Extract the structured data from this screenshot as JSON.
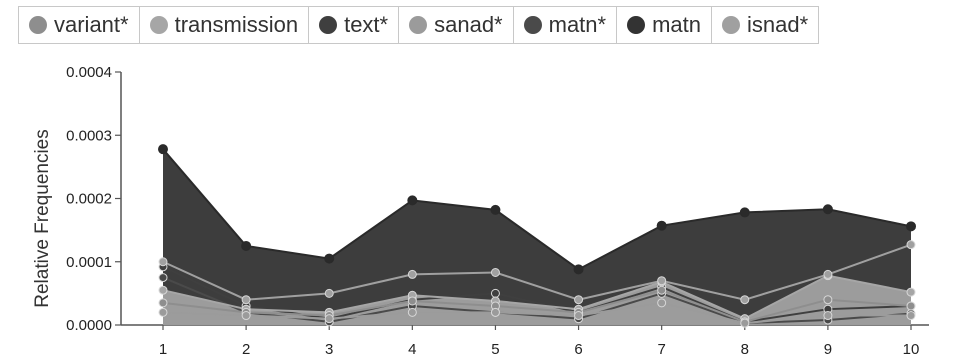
{
  "legend": [
    {
      "label": "variant*",
      "color": "#8e8e8e"
    },
    {
      "label": "transmission",
      "color": "#a6a6a6"
    },
    {
      "label": "text*",
      "color": "#3f3f3f"
    },
    {
      "label": "sanad*",
      "color": "#9b9b9b"
    },
    {
      "label": "matn*",
      "color": "#4a4a4a"
    },
    {
      "label": "matn",
      "color": "#333333"
    },
    {
      "label": "isnad*",
      "color": "#a0a0a0"
    }
  ],
  "chart_data": {
    "type": "area",
    "ylabel": "Relative Frequencies",
    "xlabel": "",
    "ylim": [
      0,
      0.0004
    ],
    "y_ticks": [
      "0.0000",
      "0.0001",
      "0.0002",
      "0.0003",
      "0.0004"
    ],
    "x": [
      "1",
      "2",
      "3",
      "4",
      "5",
      "6",
      "7",
      "8",
      "9",
      "10"
    ],
    "grid": false,
    "legend_position": "top",
    "series": [
      {
        "name": "matn",
        "color": "#333333",
        "fill_opacity": 0.95,
        "values": [
          0.000278,
          0.000125,
          0.000105,
          0.000197,
          0.000182,
          8.8e-05,
          0.000157,
          0.000178,
          0.000183,
          0.000156
        ]
      },
      {
        "name": "text*",
        "color": "#3f3f3f",
        "fill_opacity": 0,
        "values": [
          9.2e-05,
          3e-05,
          1e-05,
          4e-05,
          5e-05,
          2e-05,
          6e-05,
          5e-06,
          2.5e-05,
          3e-05
        ]
      },
      {
        "name": "matn*",
        "color": "#4a4a4a",
        "fill_opacity": 0,
        "values": [
          7.5e-05,
          2e-05,
          5e-06,
          3e-05,
          2e-05,
          1e-05,
          5e-05,
          3e-06,
          8e-06,
          1.8e-05
        ]
      },
      {
        "name": "transmission",
        "color": "#a6a6a6",
        "fill_opacity": 0.9,
        "values": [
          5.5e-05,
          2.5e-05,
          2e-05,
          4.7e-05,
          3.8e-05,
          2.5e-05,
          6.8e-05,
          1e-05,
          7.8e-05,
          5.2e-05
        ]
      },
      {
        "name": "variant*",
        "color": "#8e8e8e",
        "fill_opacity": 0,
        "values": [
          3.5e-05,
          2e-05,
          1.5e-05,
          3.8e-05,
          3e-05,
          2e-05,
          5.5e-05,
          5e-06,
          4e-05,
          3e-05
        ]
      },
      {
        "name": "sanad*",
        "color": "#9b9b9b",
        "fill_opacity": 0,
        "values": [
          2e-05,
          1.5e-05,
          1e-05,
          2e-05,
          2e-05,
          1.5e-05,
          3.5e-05,
          3e-06,
          1.5e-05,
          1.5e-05
        ]
      },
      {
        "name": "isnad*",
        "color": "#a0a0a0",
        "fill_opacity": 0,
        "values": [
          0.0001,
          4e-05,
          5e-05,
          8e-05,
          8.3e-05,
          4e-05,
          7e-05,
          4e-05,
          8e-05,
          0.000127
        ]
      }
    ]
  }
}
